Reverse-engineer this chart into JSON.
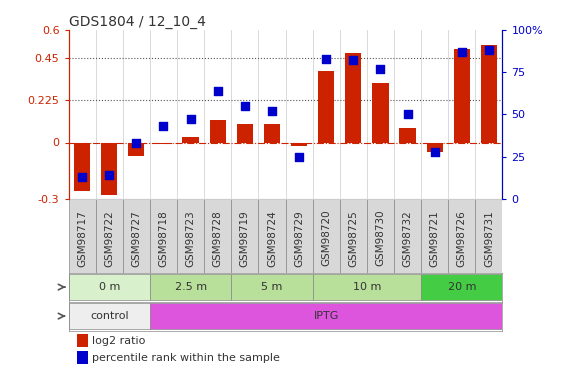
{
  "title": "GDS1804 / 12_10_4",
  "categories": [
    "GSM98717",
    "GSM98722",
    "GSM98727",
    "GSM98718",
    "GSM98723",
    "GSM98728",
    "GSM98719",
    "GSM98724",
    "GSM98729",
    "GSM98720",
    "GSM98725",
    "GSM98730",
    "GSM98732",
    "GSM98721",
    "GSM98726",
    "GSM98731"
  ],
  "log2_ratio": [
    -0.26,
    -0.28,
    -0.07,
    -0.01,
    0.03,
    0.12,
    0.1,
    0.1,
    -0.02,
    0.38,
    0.48,
    0.32,
    0.08,
    -0.05,
    0.5,
    0.52
  ],
  "pct_rank": [
    13,
    14,
    33,
    43,
    47,
    64,
    55,
    52,
    25,
    83,
    82,
    77,
    50,
    28,
    87,
    88
  ],
  "ylim_left": [
    -0.3,
    0.6
  ],
  "ylim_right": [
    0,
    100
  ],
  "yticks_left": [
    -0.3,
    0,
    0.225,
    0.45,
    0.6
  ],
  "yticks_right": [
    0,
    25,
    50,
    75,
    100
  ],
  "hlines": [
    0.225,
    0.45
  ],
  "bar_color": "#cc2200",
  "dot_color": "#0000cc",
  "time_groups": [
    {
      "label": "0 m",
      "start": 0,
      "end": 3,
      "color": "#d8f0cc"
    },
    {
      "label": "2.5 m",
      "start": 3,
      "end": 6,
      "color": "#b8e09a"
    },
    {
      "label": "5 m",
      "start": 6,
      "end": 9,
      "color": "#b8e09a"
    },
    {
      "label": "10 m",
      "start": 9,
      "end": 13,
      "color": "#b8e09a"
    },
    {
      "label": "20 m",
      "start": 13,
      "end": 16,
      "color": "#44cc44"
    }
  ],
  "agent_groups": [
    {
      "label": "control",
      "start": 0,
      "end": 3,
      "color": "#f0f0f0"
    },
    {
      "label": "IPTG",
      "start": 3,
      "end": 16,
      "color": "#ee66ee"
    }
  ],
  "left_axis_color": "#cc2200",
  "right_axis_color": "#0000cc",
  "dot_size": 30,
  "bar_width": 0.6,
  "col_line_color": "#cccccc",
  "zero_line_color": "#cc2200",
  "hline_color": "#555555",
  "tick_label_fontsize": 7.5,
  "cat_bg_color": "#d8d8d8",
  "cat_border_color": "#888888"
}
